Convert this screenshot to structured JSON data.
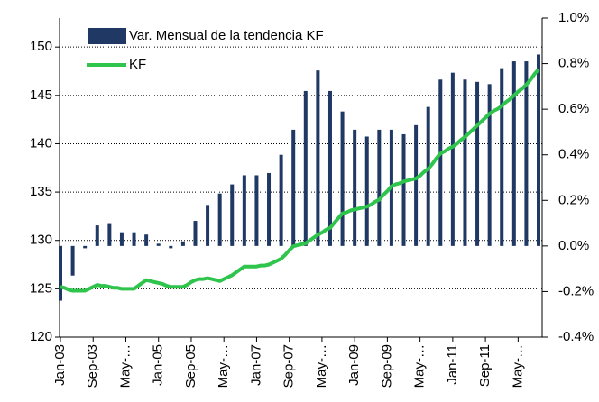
{
  "chart_data": {
    "type": "bar-line",
    "categories": [
      "Jan-03",
      null,
      null,
      null,
      null,
      null,
      null,
      null,
      "Sep-03",
      null,
      null,
      null,
      null,
      null,
      null,
      null,
      "May-…",
      null,
      null,
      null,
      null,
      null,
      null,
      null,
      "Jan-05",
      null,
      null,
      null,
      null,
      null,
      null,
      null,
      "Sep-05",
      null,
      null,
      null,
      null,
      null,
      null,
      null,
      "May-…",
      null,
      null,
      null,
      null,
      null,
      null,
      null,
      "Jan-07",
      null,
      null,
      null,
      null,
      null,
      null,
      null,
      "Sep-07",
      null,
      null,
      null,
      null,
      null,
      null,
      null,
      "May-…",
      null,
      null,
      null,
      null,
      null,
      null,
      null,
      "Jan-09",
      null,
      null,
      null,
      null,
      null,
      null,
      null,
      "Sep-09",
      null,
      null,
      null,
      null,
      null,
      null,
      null,
      "May-…",
      null,
      null,
      null,
      null,
      null,
      null,
      null,
      "Jan-11",
      null,
      null,
      null,
      null,
      null,
      null,
      null,
      "Sep-11",
      null,
      null,
      null,
      null,
      null,
      null,
      null,
      "May-…",
      null,
      null,
      null,
      null,
      null
    ],
    "series": [
      {
        "name": "Var. Mensual de la tendencia KF",
        "type": "bar",
        "axis": "y2",
        "color": "#1f3864",
        "values": [
          -0.24,
          null,
          null,
          -0.13,
          null,
          null,
          -0.01,
          null,
          null,
          0.09,
          null,
          null,
          0.1,
          null,
          null,
          0.06,
          null,
          null,
          0.06,
          null,
          null,
          0.05,
          null,
          null,
          0.01,
          null,
          null,
          -0.01,
          null,
          null,
          0.02,
          null,
          null,
          0.11,
          null,
          null,
          0.18,
          null,
          null,
          0.23,
          null,
          null,
          0.27,
          null,
          null,
          0.31,
          null,
          null,
          0.31,
          null,
          null,
          0.32,
          null,
          null,
          0.4,
          null,
          null,
          0.51,
          null,
          null,
          0.68,
          null,
          null,
          0.77,
          null,
          null,
          0.68,
          null,
          null,
          0.59,
          null,
          null,
          0.51,
          null,
          null,
          0.48,
          null,
          null,
          0.51,
          null,
          null,
          0.51,
          null,
          null,
          0.49,
          null,
          null,
          0.53,
          null,
          null,
          0.61,
          null,
          null,
          0.73,
          null,
          null,
          0.76,
          null,
          null,
          0.73,
          null,
          null,
          0.72,
          null,
          null,
          0.71,
          null,
          null,
          0.78,
          null,
          null,
          0.81,
          null,
          null,
          0.81,
          null,
          null,
          0.84
        ]
      },
      {
        "name": "KF",
        "type": "line",
        "color": "#2fc44b",
        "values": [
          125.2,
          125.1,
          124.9,
          124.8,
          124.8,
          124.8,
          124.8,
          125.0,
          125.2,
          125.4,
          125.3,
          125.3,
          125.2,
          125.1,
          125.1,
          125.0,
          125.0,
          125.0,
          125.0,
          125.3,
          125.6,
          125.9,
          125.8,
          125.7,
          125.6,
          125.5,
          125.3,
          125.2,
          125.2,
          125.2,
          125.2,
          125.4,
          125.7,
          125.9,
          126.0,
          126.0,
          126.1,
          126.0,
          125.9,
          125.8,
          126.0,
          126.2,
          126.4,
          126.7,
          127.0,
          127.3,
          127.3,
          127.3,
          127.3,
          127.4,
          127.4,
          127.5,
          127.7,
          127.9,
          128.1,
          128.5,
          129.0,
          129.4,
          129.5,
          129.6,
          129.7,
          130.0,
          130.3,
          130.6,
          130.8,
          131.1,
          131.3,
          131.8,
          132.3,
          132.8,
          132.9,
          133.1,
          133.2,
          133.3,
          133.4,
          133.5,
          133.7,
          134.0,
          134.2,
          134.7,
          135.1,
          135.6,
          135.8,
          135.9,
          136.1,
          136.2,
          136.3,
          136.4,
          136.7,
          137.1,
          137.4,
          137.9,
          138.5,
          139.0,
          139.2,
          139.5,
          139.7,
          140.0,
          140.4,
          140.7,
          141.1,
          141.5,
          141.9,
          142.3,
          142.7,
          143.1,
          143.4,
          143.6,
          143.9,
          144.3,
          144.6,
          145.0,
          145.4,
          145.7,
          146.1,
          146.6,
          147.2,
          147.7
        ]
      }
    ],
    "ylim": [
      120,
      153
    ],
    "yticks": [
      120,
      125,
      130,
      135,
      140,
      145,
      150
    ],
    "y2lim": [
      -0.4,
      1.0
    ],
    "y2ticks": [
      {
        "value": -0.4,
        "label": "-0.4%"
      },
      {
        "value": -0.2,
        "label": "-0.2%"
      },
      {
        "value": 0.0,
        "label": "0.0%"
      },
      {
        "value": 0.2,
        "label": "0.2%"
      },
      {
        "value": 0.4,
        "label": "0.4%"
      },
      {
        "value": 0.6,
        "label": "0.6%"
      },
      {
        "value": 0.8,
        "label": "0.8%"
      },
      {
        "value": 1.0,
        "label": "1.0%"
      }
    ],
    "grid": true,
    "legend": "top-left"
  }
}
